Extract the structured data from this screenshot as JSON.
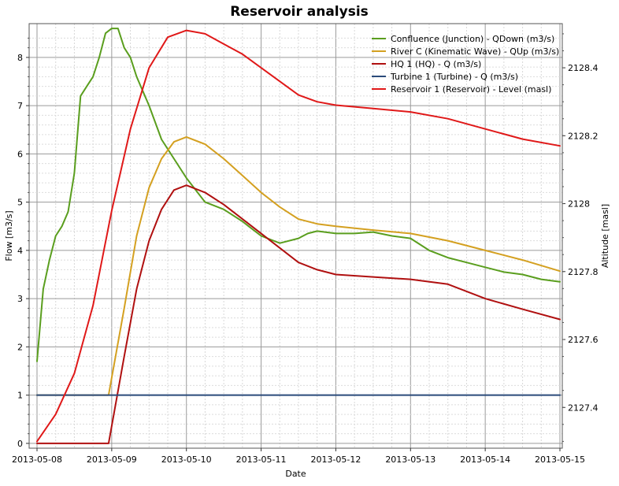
{
  "chart_data": {
    "type": "line",
    "title": "Reservoir analysis",
    "xlabel": "Date",
    "ylabel_left": "Flow [m3/s]",
    "ylabel_right": "Altitude [masl]",
    "x_ticks": [
      "2013-05-08",
      "2013-05-09",
      "2013-05-10",
      "2013-05-11",
      "2013-05-12",
      "2013-05-13",
      "2013-05-14",
      "2013-05-15"
    ],
    "y_left_ticks": [
      "0",
      "1",
      "2",
      "3",
      "4",
      "5",
      "6",
      "7",
      "8"
    ],
    "y_right_ticks": [
      "2127.4",
      "2127.6",
      "2127.8",
      "2128",
      "2128.2",
      "2128.4"
    ],
    "xlim": [
      "2013-05-08",
      "2013-05-15"
    ],
    "ylim_left": [
      -0.1,
      8.7
    ],
    "ylim_right": [
      2127.28,
      2128.53
    ],
    "grid": true,
    "legend_position": "top-right",
    "series": [
      {
        "name": "Confluence (Junction) - QDown (m3/s)",
        "axis": "left",
        "color": "#5a9e1e",
        "x": [
          "2013-05-08 00:00",
          "2013-05-08 02:00",
          "2013-05-08 04:00",
          "2013-05-08 06:00",
          "2013-05-08 08:00",
          "2013-05-08 10:00",
          "2013-05-08 12:00",
          "2013-05-08 14:00",
          "2013-05-08 16:00",
          "2013-05-08 18:00",
          "2013-05-08 20:00",
          "2013-05-08 22:00",
          "2013-05-09 00:00",
          "2013-05-09 02:00",
          "2013-05-09 04:00",
          "2013-05-09 06:00",
          "2013-05-09 08:00",
          "2013-05-09 10:00",
          "2013-05-09 12:00",
          "2013-05-09 16:00",
          "2013-05-09 20:00",
          "2013-05-10 00:00",
          "2013-05-10 06:00",
          "2013-05-10 12:00",
          "2013-05-10 18:00",
          "2013-05-10 20:00",
          "2013-05-11 00:00",
          "2013-05-11 06:00",
          "2013-05-11 12:00",
          "2013-05-11 15:00",
          "2013-05-11 18:00",
          "2013-05-12 00:00",
          "2013-05-12 06:00",
          "2013-05-12 12:00",
          "2013-05-12 18:00",
          "2013-05-13 00:00",
          "2013-05-13 06:00",
          "2013-05-13 12:00",
          "2013-05-13 18:00",
          "2013-05-14 00:00",
          "2013-05-14 06:00",
          "2013-05-14 12:00",
          "2013-05-14 18:00",
          "2013-05-15 00:00"
        ],
        "y": [
          1.7,
          3.2,
          3.8,
          4.3,
          4.5,
          4.8,
          5.6,
          7.2,
          7.4,
          7.6,
          8.0,
          8.5,
          8.6,
          8.6,
          8.2,
          8.0,
          7.6,
          7.3,
          7.0,
          6.3,
          5.9,
          5.5,
          5.0,
          4.85,
          4.6,
          4.5,
          4.3,
          4.15,
          4.25,
          4.35,
          4.4,
          4.35,
          4.35,
          4.38,
          4.3,
          4.25,
          4.0,
          3.85,
          3.75,
          3.65,
          3.55,
          3.5,
          3.4,
          3.35
        ]
      },
      {
        "name": "River C (Kinematic Wave) - QUp (m3/s)",
        "axis": "left",
        "color": "#d4a020",
        "x": [
          "2013-05-08 00:00",
          "2013-05-08 12:00",
          "2013-05-08 23:00",
          "2013-05-09 04:00",
          "2013-05-09 08:00",
          "2013-05-09 12:00",
          "2013-05-09 16:00",
          "2013-05-09 20:00",
          "2013-05-10 00:00",
          "2013-05-10 06:00",
          "2013-05-10 12:00",
          "2013-05-10 18:00",
          "2013-05-11 00:00",
          "2013-05-11 06:00",
          "2013-05-11 12:00",
          "2013-05-11 18:00",
          "2013-05-12 00:00",
          "2013-05-12 12:00",
          "2013-05-13 00:00",
          "2013-05-13 12:00",
          "2013-05-14 00:00",
          "2013-05-14 12:00",
          "2013-05-15 00:00"
        ],
        "y": [
          1.0,
          1.0,
          1.0,
          2.8,
          4.3,
          5.3,
          5.9,
          6.25,
          6.35,
          6.2,
          5.9,
          5.55,
          5.2,
          4.9,
          4.65,
          4.55,
          4.5,
          4.42,
          4.35,
          4.2,
          4.0,
          3.8,
          3.57
        ]
      },
      {
        "name": "HQ 1 (HQ) - Q (m3/s)",
        "axis": "left",
        "color": "#b01010",
        "x": [
          "2013-05-08 00:00",
          "2013-05-08 12:00",
          "2013-05-08 23:00",
          "2013-05-09 04:00",
          "2013-05-09 08:00",
          "2013-05-09 12:00",
          "2013-05-09 16:00",
          "2013-05-09 20:00",
          "2013-05-10 00:00",
          "2013-05-10 06:00",
          "2013-05-10 12:00",
          "2013-05-10 18:00",
          "2013-05-11 00:00",
          "2013-05-11 06:00",
          "2013-05-11 12:00",
          "2013-05-11 18:00",
          "2013-05-12 00:00",
          "2013-05-12 12:00",
          "2013-05-13 00:00",
          "2013-05-13 12:00",
          "2013-05-14 00:00",
          "2013-05-14 12:00",
          "2013-05-15 00:00"
        ],
        "y": [
          0.0,
          0.0,
          0.0,
          1.8,
          3.2,
          4.2,
          4.85,
          5.25,
          5.35,
          5.2,
          4.95,
          4.65,
          4.35,
          4.05,
          3.75,
          3.6,
          3.5,
          3.45,
          3.4,
          3.3,
          3.0,
          2.78,
          2.57
        ]
      },
      {
        "name": "Turbine 1 (Turbine) - Q (m3/s)",
        "axis": "left",
        "color": "#2a4a7a",
        "x": [
          "2013-05-08 00:00",
          "2013-05-15 00:00"
        ],
        "y": [
          1.0,
          1.0
        ]
      },
      {
        "name": "Reservoir 1 (Reservoir) - Level (masl)",
        "axis": "right",
        "color": "#e01818",
        "x": [
          "2013-05-08 00:00",
          "2013-05-08 06:00",
          "2013-05-08 12:00",
          "2013-05-08 18:00",
          "2013-05-09 00:00",
          "2013-05-09 06:00",
          "2013-05-09 12:00",
          "2013-05-09 18:00",
          "2013-05-10 00:00",
          "2013-05-10 06:00",
          "2013-05-10 12:00",
          "2013-05-10 18:00",
          "2013-05-11 00:00",
          "2013-05-11 06:00",
          "2013-05-11 12:00",
          "2013-05-11 18:00",
          "2013-05-12 00:00",
          "2013-05-12 12:00",
          "2013-05-13 00:00",
          "2013-05-13 12:00",
          "2013-05-14 00:00",
          "2013-05-14 12:00",
          "2013-05-15 00:00"
        ],
        "y": [
          2127.3,
          2127.38,
          2127.5,
          2127.7,
          2127.98,
          2128.22,
          2128.4,
          2128.49,
          2128.51,
          2128.5,
          2128.47,
          2128.44,
          2128.4,
          2128.36,
          2128.32,
          2128.3,
          2128.29,
          2128.28,
          2128.27,
          2128.25,
          2128.22,
          2128.19,
          2128.17
        ]
      }
    ]
  }
}
